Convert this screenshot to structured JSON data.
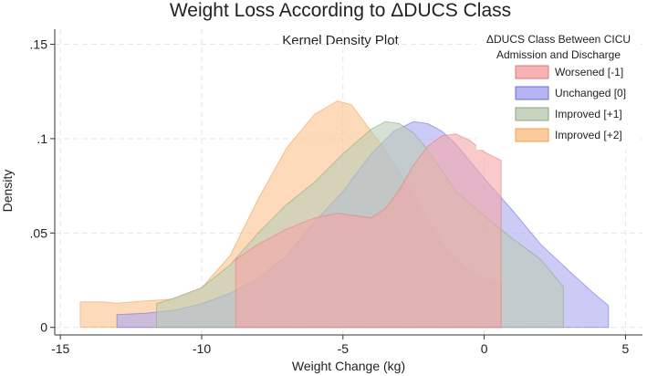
{
  "chart_data": {
    "type": "area",
    "title": "Weight Loss According to ΔDUCS Class",
    "subtitle": "Kernel Density Plot",
    "xlabel": "Weight Change (kg)",
    "ylabel": "Density",
    "xlim": [
      -15.2,
      5.6
    ],
    "ylim": [
      -0.004,
      0.158
    ],
    "xticks": [
      -15,
      -10,
      -5,
      0,
      5
    ],
    "yticks": [
      0,
      0.05,
      0.1,
      0.15
    ],
    "ytick_labels": [
      "0",
      ".05",
      ".1",
      ".15"
    ],
    "grid": true,
    "legend": {
      "title_lines": [
        "ΔDUCS Class Between CICU",
        "Admission and Discharge"
      ],
      "position": "top-right"
    },
    "series": [
      {
        "name": "Improved [+2]",
        "fill": "#fbc28a",
        "stroke": "#f0a050",
        "points": [
          [
            -14.3,
            0
          ],
          [
            -14.3,
            0.0135
          ],
          [
            -13.5,
            0.0135
          ],
          [
            -13,
            0.0128
          ],
          [
            -12,
            0.014
          ],
          [
            -11,
            0.015
          ],
          [
            -10,
            0.021
          ],
          [
            -9,
            0.038
          ],
          [
            -8,
            0.068
          ],
          [
            -7,
            0.095
          ],
          [
            -6,
            0.113
          ],
          [
            -5.2,
            0.12
          ],
          [
            -4.7,
            0.118
          ],
          [
            -4.2,
            0.108
          ],
          [
            -3.5,
            0.094
          ],
          [
            -3,
            0.082
          ],
          [
            -2.5,
            0.07
          ],
          [
            -2,
            0.057
          ],
          [
            -1.5,
            0.045
          ],
          [
            -1,
            0.036
          ],
          [
            -0.5,
            0.03
          ],
          [
            0,
            0.026
          ],
          [
            0.6,
            0.023
          ],
          [
            0.6,
            0
          ]
        ]
      },
      {
        "name": "Unchanged [0]",
        "fill": "#a8a8f0",
        "stroke": "#6b6be0",
        "points": [
          [
            -13,
            0
          ],
          [
            -13,
            0.0068
          ],
          [
            -12,
            0.0075
          ],
          [
            -11,
            0.009
          ],
          [
            -10,
            0.0125
          ],
          [
            -9,
            0.018
          ],
          [
            -8,
            0.026
          ],
          [
            -7,
            0.038
          ],
          [
            -6,
            0.056
          ],
          [
            -5,
            0.072
          ],
          [
            -4,
            0.092
          ],
          [
            -3.2,
            0.104
          ],
          [
            -2.5,
            0.109
          ],
          [
            -2,
            0.108
          ],
          [
            -1.5,
            0.104
          ],
          [
            -1,
            0.097
          ],
          [
            0,
            0.079
          ],
          [
            1,
            0.062
          ],
          [
            2,
            0.044
          ],
          [
            3,
            0.03
          ],
          [
            3.8,
            0.019
          ],
          [
            4.4,
            0.0115
          ],
          [
            4.4,
            0
          ]
        ]
      },
      {
        "name": "Improved [+1]",
        "fill": "#bccdb5",
        "stroke": "#8aa57e",
        "points": [
          [
            -11.6,
            0
          ],
          [
            -11.6,
            0.0125
          ],
          [
            -11,
            0.0155
          ],
          [
            -10,
            0.021
          ],
          [
            -9,
            0.033
          ],
          [
            -8,
            0.05
          ],
          [
            -7,
            0.065
          ],
          [
            -6,
            0.077
          ],
          [
            -5,
            0.092
          ],
          [
            -4,
            0.105
          ],
          [
            -3.5,
            0.109
          ],
          [
            -3,
            0.108
          ],
          [
            -2.5,
            0.103
          ],
          [
            -2,
            0.094
          ],
          [
            -1.5,
            0.083
          ],
          [
            -1,
            0.072
          ],
          [
            0,
            0.059
          ],
          [
            1,
            0.047
          ],
          [
            2,
            0.036
          ],
          [
            2.8,
            0.0215
          ],
          [
            2.8,
            0
          ]
        ]
      },
      {
        "name": "Worsened [-1]",
        "fill": "#f4a6a6",
        "stroke": "#e57a7a",
        "points": [
          [
            -8.8,
            0
          ],
          [
            -8.8,
            0.036
          ],
          [
            -8,
            0.044
          ],
          [
            -7,
            0.052
          ],
          [
            -6,
            0.058
          ],
          [
            -5.2,
            0.0605
          ],
          [
            -4.5,
            0.059
          ],
          [
            -4,
            0.058
          ],
          [
            -3.5,
            0.063
          ],
          [
            -3,
            0.073
          ],
          [
            -2.5,
            0.086
          ],
          [
            -2,
            0.096
          ],
          [
            -1.5,
            0.1015
          ],
          [
            -1,
            0.1025
          ],
          [
            -0.5,
            0.099
          ],
          [
            0,
            0.093
          ],
          [
            0.6,
            0.0885
          ],
          [
            0.6,
            0
          ]
        ]
      }
    ],
    "legend_order": [
      "Worsened [-1]",
      "Unchanged [0]",
      "Improved [+1]",
      "Improved [+2]"
    ]
  }
}
